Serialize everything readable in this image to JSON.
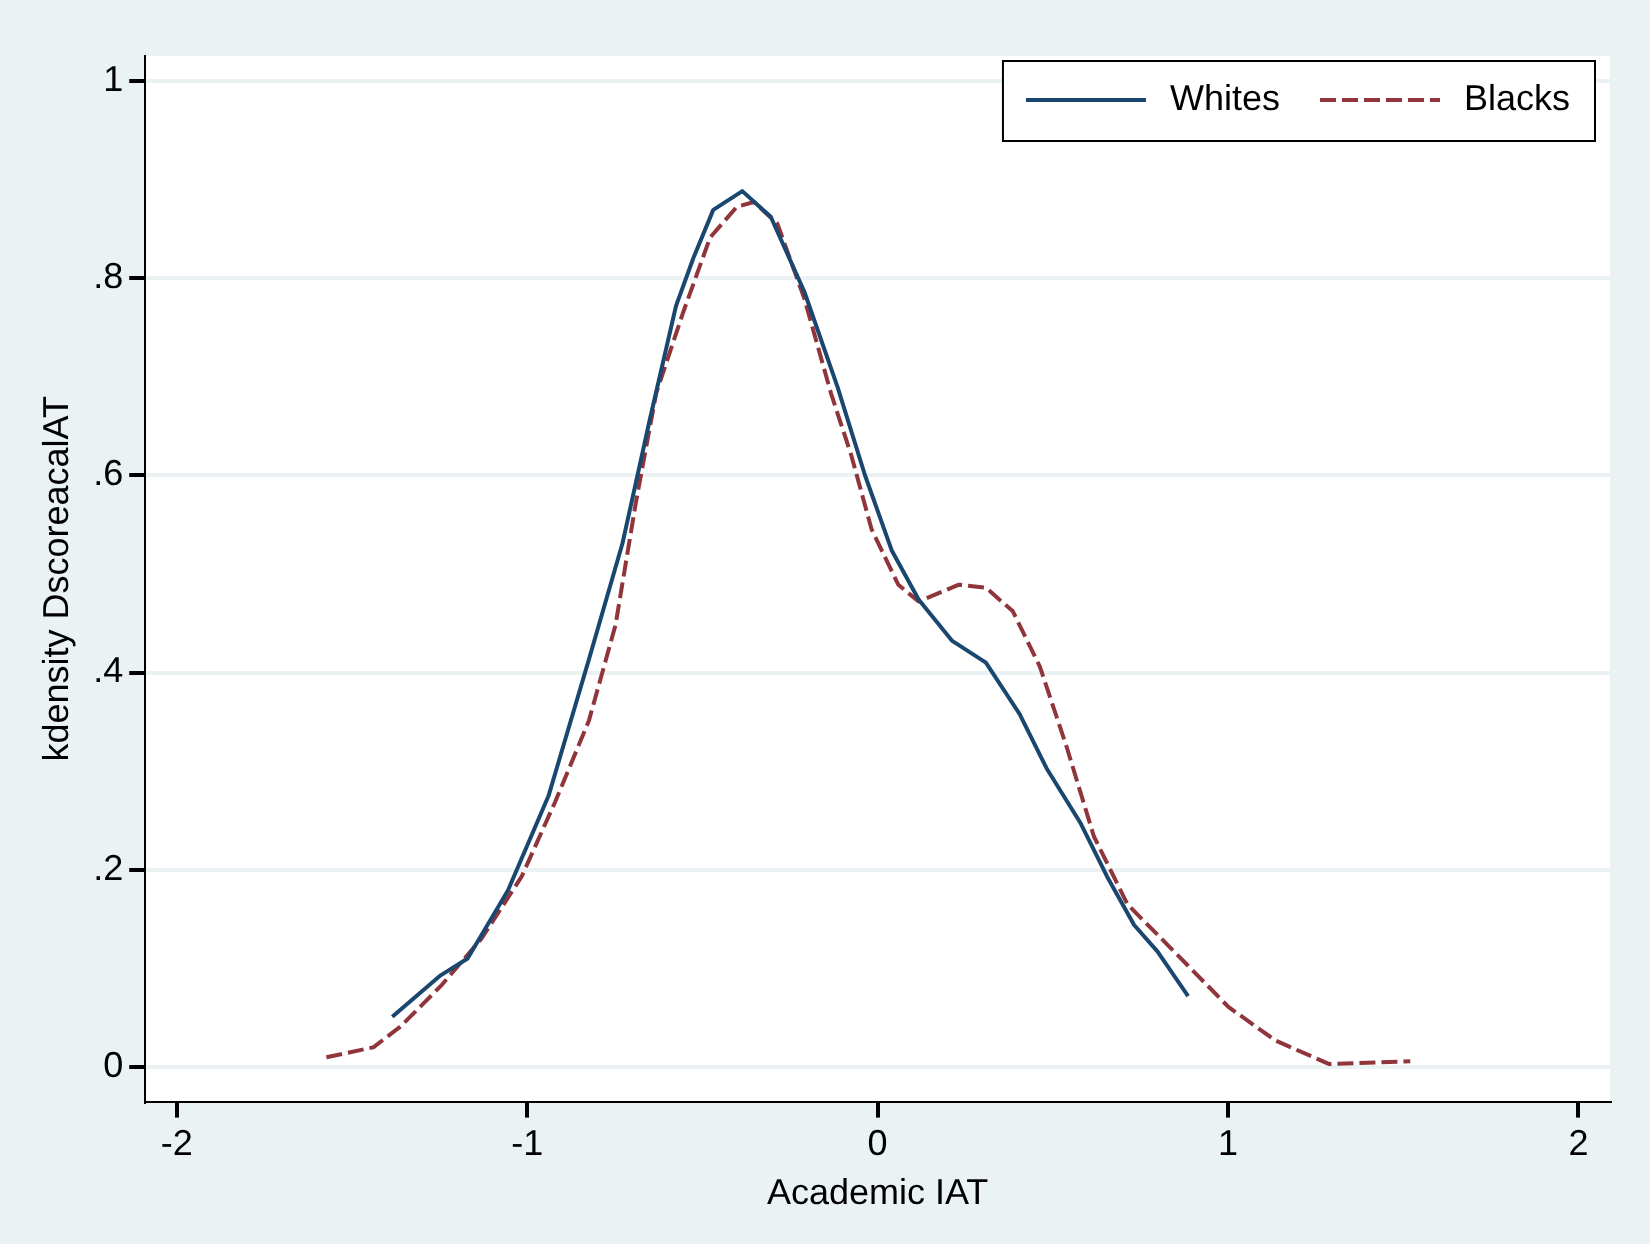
{
  "chart_data": {
    "type": "line",
    "xlabel": "Academic IAT",
    "ylabel": "kdensity DscoreacalAT",
    "xlim": [
      -2.09,
      2.09
    ],
    "xticks": [
      -2,
      -1,
      0,
      1,
      2
    ],
    "ylim": [
      -0.035,
      1.025
    ],
    "yticks": [
      0,
      {
        "value": 0.2,
        "label": ".2"
      },
      {
        "value": 0.4,
        "label": ".4"
      },
      {
        "value": 0.6,
        "label": ".6"
      },
      {
        "value": 0.8,
        "label": ".8"
      },
      1
    ],
    "grid": "y",
    "legend": "top right",
    "marker": "none",
    "series": [
      {
        "name": "Whites",
        "color": "#1a476f",
        "line_style": "solid",
        "x": [
          -1.385,
          -1.247,
          -1.17,
          -1.055,
          -0.939,
          -0.824,
          -0.728,
          -0.651,
          -0.575,
          -0.526,
          -0.469,
          -0.386,
          -0.305,
          -0.209,
          -0.114,
          -0.036,
          0.04,
          0.117,
          0.213,
          0.309,
          0.405,
          0.482,
          0.578,
          0.655,
          0.732,
          0.799,
          0.886
        ],
        "values": [
          0.051,
          0.093,
          0.11,
          0.179,
          0.275,
          0.413,
          0.531,
          0.655,
          0.772,
          0.82,
          0.869,
          0.888,
          0.862,
          0.786,
          0.689,
          0.6,
          0.524,
          0.474,
          0.432,
          0.41,
          0.358,
          0.303,
          0.248,
          0.193,
          0.144,
          0.117,
          0.072
        ]
      },
      {
        "name": "Blacks",
        "color": "#90353b",
        "line_style": "dashed",
        "x": [
          -1.573,
          -1.439,
          -1.362,
          -1.247,
          -1.131,
          -1.016,
          -0.92,
          -0.824,
          -0.748,
          -0.69,
          -0.632,
          -0.555,
          -0.478,
          -0.402,
          -0.353,
          -0.286,
          -0.209,
          -0.133,
          -0.075,
          -0.017,
          0.059,
          0.117,
          0.232,
          0.309,
          0.386,
          0.463,
          0.54,
          0.617,
          0.713,
          0.866,
          1.001,
          1.135,
          1.289,
          1.52
        ],
        "values": [
          0.01,
          0.02,
          0.041,
          0.082,
          0.13,
          0.193,
          0.269,
          0.351,
          0.448,
          0.572,
          0.683,
          0.765,
          0.841,
          0.872,
          0.877,
          0.855,
          0.779,
          0.683,
          0.62,
          0.545,
          0.489,
          0.472,
          0.489,
          0.486,
          0.462,
          0.406,
          0.324,
          0.234,
          0.165,
          0.11,
          0.061,
          0.027,
          0.003,
          0.006
        ]
      }
    ]
  }
}
